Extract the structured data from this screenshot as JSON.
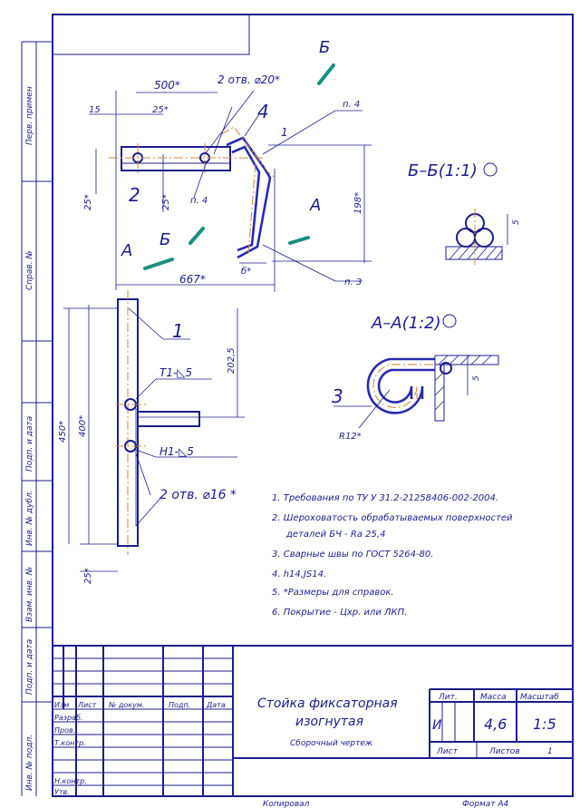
{
  "side_columns": [
    "Перв. примен",
    "Справ. №",
    "Подп. и дата",
    "Инв. № дубл.",
    "Взам. инв. №",
    "Подп. и дата",
    "Инв. № подл."
  ],
  "main_view": {
    "dims": [
      "500*",
      "2 отв. ⌀20*",
      "15",
      "25*",
      "25*",
      "25*",
      "198*",
      "667*",
      "б*"
    ],
    "positions": [
      "1",
      "2",
      "4"
    ],
    "refs": [
      "п. 4",
      "п. 4",
      "п. 3"
    ],
    "cut_labels": [
      "Б",
      "А",
      "Б",
      "А"
    ]
  },
  "section_bb": {
    "title": "Б–Б(1:1)",
    "dim": "5"
  },
  "section_aa": {
    "title": "А–А(1:2)",
    "position": "3",
    "dims": [
      "R12*",
      "5"
    ]
  },
  "side_view": {
    "position": "1",
    "dims": [
      "450*",
      "400*",
      "202,5",
      "25*"
    ],
    "welds": [
      "Т1-◺5",
      "Н1-◺5"
    ],
    "holes": "2 отв. ⌀16 *"
  },
  "notes": [
    "1. Требования по ТУ У 31.2-21258406-002-2004.",
    "2. Шероховатость обрабатываемых поверхностей",
    "деталей БЧ - Ra 25,4",
    "3. Сварные швы по ГОСТ 5264-80.",
    "4. h14,JS14.",
    "5. *Размеры для справок.",
    "6. Покрытие - Цхр. или ЛКП."
  ],
  "title_block": {
    "name_line1": "Стойка фиксаторная",
    "name_line2": "изогнутая",
    "doc_type": "Сборочный чертеж",
    "col_headers": [
      "Изм",
      "Лист",
      "№ докум.",
      "Подп.",
      "Дата"
    ],
    "roles": [
      "Разраб.",
      "Пров.",
      "Т.контр.",
      "Н.контр.",
      "Утв."
    ],
    "lit_label": "Лит.",
    "mass_label": "Масса",
    "scale_label": "Масштаб",
    "lit_value": "И",
    "mass_value": "4,6",
    "scale_value": "1:5",
    "sheet_label": "Лист",
    "sheets_label": "Листов",
    "sheets_value": "1",
    "copied": "Копировал",
    "format": "Формат А4"
  }
}
